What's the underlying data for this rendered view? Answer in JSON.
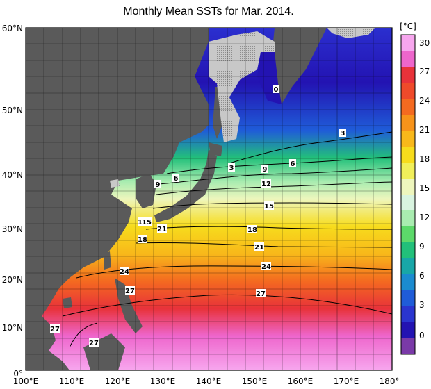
{
  "title": "Monthly Mean SSTs for Mar. 2014.",
  "colorbar": {
    "unit": "[°C]",
    "ticks": [
      "30",
      "27",
      "24",
      "21",
      "18",
      "15",
      "12",
      "9",
      "6",
      "3",
      "0"
    ],
    "colors": [
      "#f7a6ee",
      "#ee66cc",
      "#e8323a",
      "#ef4a2a",
      "#f46a20",
      "#f7931a",
      "#f8b81a",
      "#f7dc1c",
      "#f1ef5a",
      "#eef6bd",
      "#d9f4e0",
      "#a9ecb0",
      "#5cd96a",
      "#22c07a",
      "#18a7a8",
      "#1b8bd0",
      "#1f5cd8",
      "#2a35cf",
      "#2313b2",
      "#7a3aa8"
    ]
  },
  "axes": {
    "lat_labels": [
      "60°N",
      "50°N",
      "40°N",
      "30°N",
      "20°N",
      "10°N",
      "0°"
    ],
    "lon_labels": [
      "100°E",
      "110°E",
      "120°E",
      "130°E",
      "140°E",
      "150°E",
      "160°E",
      "170°E",
      "180°"
    ]
  },
  "contour_labels": [
    "0",
    "3",
    "3",
    "6",
    "9",
    "6",
    "9",
    "12",
    "15",
    "12",
    "18",
    "15",
    "21",
    "21",
    "18",
    "24",
    "24",
    "27",
    "27",
    "27",
    "27"
  ],
  "map_colors": {
    "land": "#5a5a5a",
    "ice": "#c8c8c8"
  }
}
